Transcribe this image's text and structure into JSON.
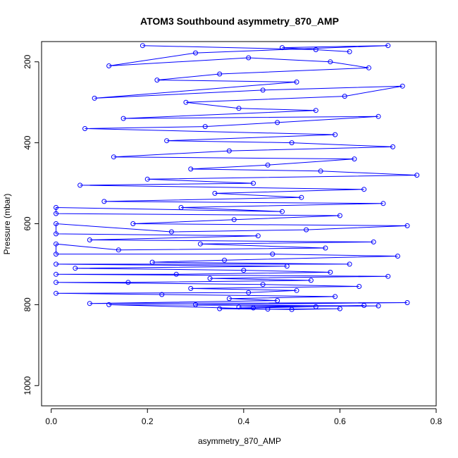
{
  "chart_data": {
    "type": "scatter",
    "title": "ATOM3 Southbound asymmetry_870_AMP",
    "xlabel": "asymmetry_870_AMP",
    "ylabel": "Pressure (mbar)",
    "xlim": [
      -0.02,
      0.8
    ],
    "ylim": [
      1050,
      150
    ],
    "y_reversed": true,
    "xticks": [
      0.0,
      0.2,
      0.4,
      0.6,
      0.8
    ],
    "xtick_labels": [
      "0.0",
      "0.2",
      "0.4",
      "0.6",
      "0.8"
    ],
    "yticks": [
      200,
      400,
      600,
      800,
      1000
    ],
    "ytick_labels": [
      "200",
      "400",
      "600",
      "800",
      "1000"
    ],
    "grid": false,
    "series": [
      {
        "color": "#0000ff",
        "marker": "open-circle",
        "connected": true,
        "points": [
          [
            0.19,
            160
          ],
          [
            0.55,
            170
          ],
          [
            0.62,
            175
          ],
          [
            0.48,
            165
          ],
          [
            0.7,
            160
          ],
          [
            0.3,
            178
          ],
          [
            0.12,
            210
          ],
          [
            0.41,
            190
          ],
          [
            0.58,
            200
          ],
          [
            0.66,
            215
          ],
          [
            0.35,
            230
          ],
          [
            0.22,
            245
          ],
          [
            0.51,
            250
          ],
          [
            0.09,
            290
          ],
          [
            0.44,
            270
          ],
          [
            0.73,
            260
          ],
          [
            0.61,
            285
          ],
          [
            0.28,
            300
          ],
          [
            0.39,
            315
          ],
          [
            0.55,
            320
          ],
          [
            0.15,
            340
          ],
          [
            0.68,
            335
          ],
          [
            0.47,
            350
          ],
          [
            0.32,
            360
          ],
          [
            0.07,
            365
          ],
          [
            0.59,
            380
          ],
          [
            0.24,
            395
          ],
          [
            0.5,
            400
          ],
          [
            0.71,
            410
          ],
          [
            0.37,
            420
          ],
          [
            0.13,
            435
          ],
          [
            0.63,
            440
          ],
          [
            0.45,
            455
          ],
          [
            0.29,
            465
          ],
          [
            0.56,
            470
          ],
          [
            0.76,
            480
          ],
          [
            0.2,
            490
          ],
          [
            0.42,
            500
          ],
          [
            0.06,
            505
          ],
          [
            0.65,
            515
          ],
          [
            0.34,
            525
          ],
          [
            0.52,
            535
          ],
          [
            0.11,
            545
          ],
          [
            0.69,
            550
          ],
          [
            0.27,
            560
          ],
          [
            0.48,
            570
          ],
          [
            0.01,
            560
          ],
          [
            0.01,
            575
          ],
          [
            0.6,
            580
          ],
          [
            0.38,
            590
          ],
          [
            0.17,
            600
          ],
          [
            0.74,
            605
          ],
          [
            0.53,
            615
          ],
          [
            0.25,
            620
          ],
          [
            0.01,
            600
          ],
          [
            0.01,
            625
          ],
          [
            0.43,
            630
          ],
          [
            0.08,
            640
          ],
          [
            0.67,
            645
          ],
          [
            0.31,
            650
          ],
          [
            0.57,
            660
          ],
          [
            0.14,
            665
          ],
          [
            0.01,
            650
          ],
          [
            0.01,
            675
          ],
          [
            0.46,
            675
          ],
          [
            0.72,
            680
          ],
          [
            0.36,
            690
          ],
          [
            0.21,
            695
          ],
          [
            0.62,
            700
          ],
          [
            0.01,
            700
          ],
          [
            0.49,
            705
          ],
          [
            0.05,
            710
          ],
          [
            0.4,
            715
          ],
          [
            0.58,
            720
          ],
          [
            0.26,
            725
          ],
          [
            0.01,
            725
          ],
          [
            0.7,
            730
          ],
          [
            0.33,
            735
          ],
          [
            0.54,
            740
          ],
          [
            0.16,
            745
          ],
          [
            0.01,
            745
          ],
          [
            0.44,
            750
          ],
          [
            0.64,
            755
          ],
          [
            0.29,
            760
          ],
          [
            0.51,
            765
          ],
          [
            0.41,
            770
          ],
          [
            0.01,
            772
          ],
          [
            0.23,
            775
          ],
          [
            0.59,
            780
          ],
          [
            0.37,
            785
          ],
          [
            0.47,
            790
          ],
          [
            0.08,
            797
          ],
          [
            0.74,
            795
          ],
          [
            0.3,
            800
          ],
          [
            0.55,
            805
          ],
          [
            0.42,
            808
          ],
          [
            0.65,
            802
          ],
          [
            0.35,
            810
          ],
          [
            0.5,
            812
          ],
          [
            0.6,
            810
          ],
          [
            0.45,
            811
          ],
          [
            0.12,
            800
          ],
          [
            0.68,
            803
          ],
          [
            0.39,
            806
          ]
        ]
      }
    ]
  }
}
